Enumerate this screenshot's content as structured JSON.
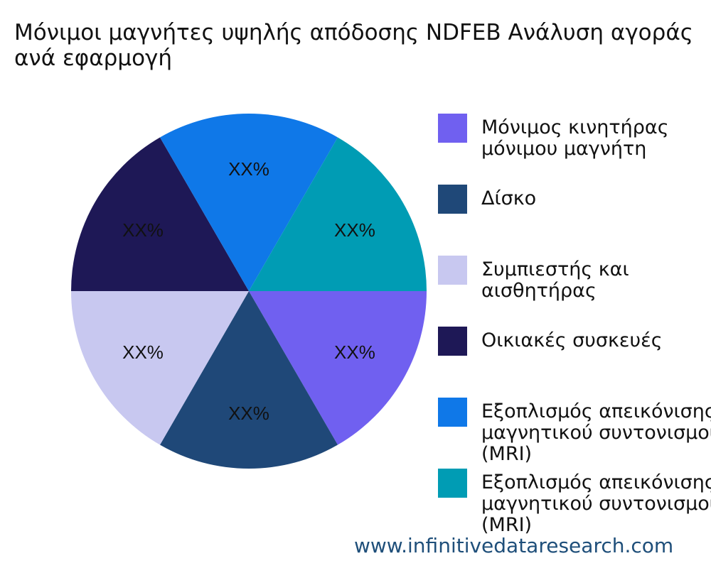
{
  "chart_data": {
    "type": "pie",
    "title": "Μόνιμοι μαγνήτες υψηλής απόδοσης NDFEB Ανάλυση αγοράς\nανά εφαρμογή",
    "slices": [
      {
        "label": "Μόνιμος κινητήρας\nμόνιμου μαγνήτη",
        "value": 16.67,
        "display": "XX%",
        "color": "#7060f0"
      },
      {
        "label": "Δίσκο",
        "value": 16.67,
        "display": "XX%",
        "color": "#1f4878"
      },
      {
        "label": "Συμπιεστής και\nαισθητήρας",
        "value": 16.67,
        "display": "XX%",
        "color": "#c8c8f0"
      },
      {
        "label": "Οικιακές συσκευές",
        "value": 16.67,
        "display": "XX%",
        "color": "#1e1856"
      },
      {
        "label": "Εξοπλισμός απεικόνισης\nμαγνητικού συντονισμού\n(MRI)",
        "value": 16.67,
        "display": "XX%",
        "color": "#0f78e8"
      },
      {
        "label": "Εξοπλισμός απεικόνισης\nμαγνητικού συντονισμού\n(MRI)",
        "value": 16.67,
        "display": "XX%",
        "color": "#009cb4"
      }
    ],
    "legend_position": "right"
  },
  "watermark": "www.infinitivedataresearch.com"
}
